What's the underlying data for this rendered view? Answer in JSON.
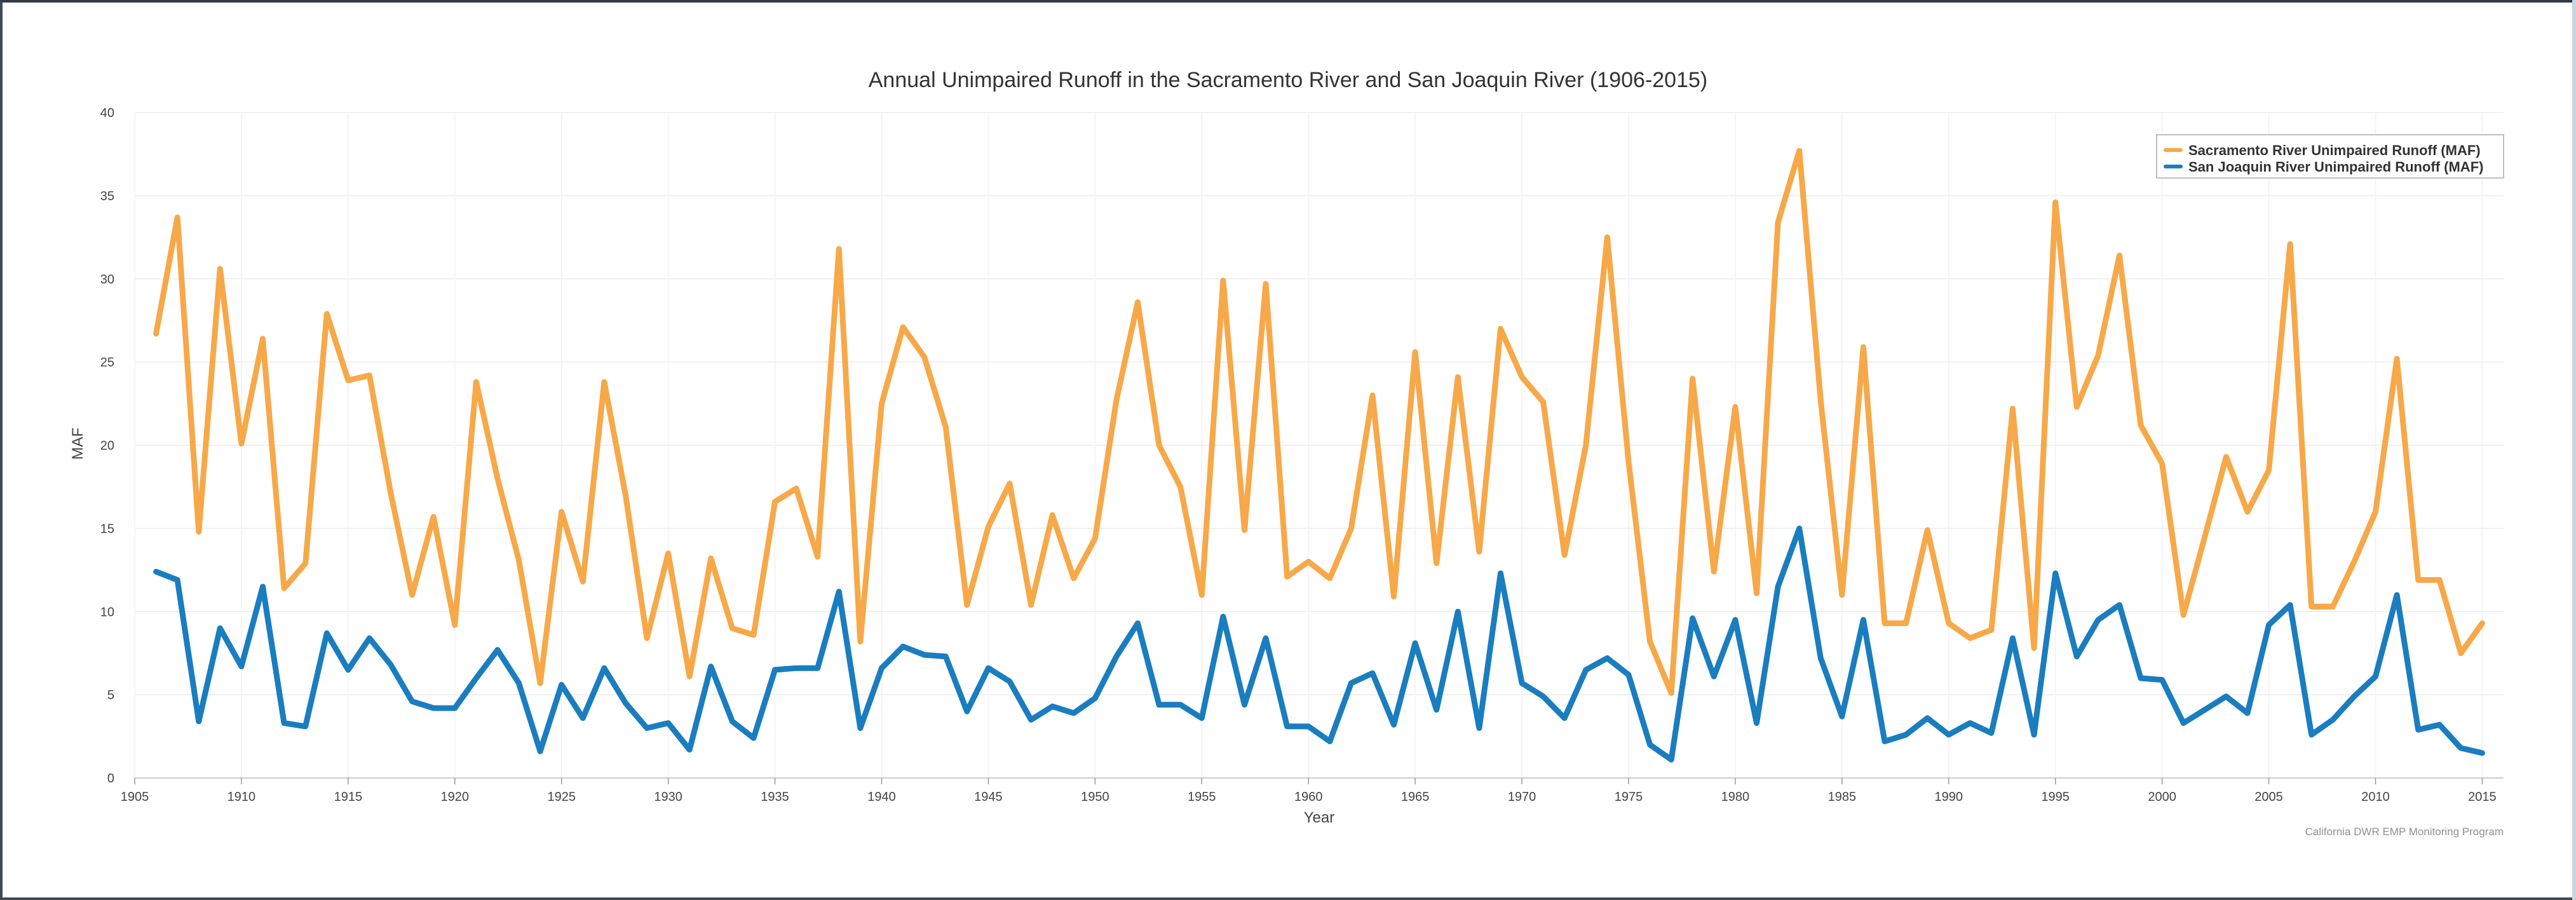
{
  "chart_data": {
    "type": "line",
    "title": "Annual Unimpaired Runoff in the Sacramento River and San Joaquin River (1906-2015)",
    "xlabel": "Year",
    "ylabel": "MAF",
    "xlim": [
      1905,
      2016
    ],
    "ylim": [
      0,
      40
    ],
    "x_ticks": [
      1905,
      1910,
      1915,
      1920,
      1925,
      1930,
      1935,
      1940,
      1945,
      1950,
      1955,
      1960,
      1965,
      1970,
      1975,
      1980,
      1985,
      1990,
      1995,
      2000,
      2005,
      2010,
      2015
    ],
    "y_ticks": [
      0,
      5,
      10,
      15,
      20,
      25,
      30,
      35,
      40
    ],
    "grid": true,
    "legend_position": "top-right",
    "credit": "California DWR EMP Monitoring Program",
    "x": [
      1906,
      1907,
      1908,
      1909,
      1910,
      1911,
      1912,
      1913,
      1914,
      1915,
      1916,
      1917,
      1918,
      1919,
      1920,
      1921,
      1922,
      1923,
      1924,
      1925,
      1926,
      1927,
      1928,
      1929,
      1930,
      1931,
      1932,
      1933,
      1934,
      1935,
      1936,
      1937,
      1938,
      1939,
      1940,
      1941,
      1942,
      1943,
      1944,
      1945,
      1946,
      1947,
      1948,
      1949,
      1950,
      1951,
      1952,
      1953,
      1954,
      1955,
      1956,
      1957,
      1958,
      1959,
      1960,
      1961,
      1962,
      1963,
      1964,
      1965,
      1966,
      1967,
      1968,
      1969,
      1970,
      1971,
      1972,
      1973,
      1974,
      1975,
      1976,
      1977,
      1978,
      1979,
      1980,
      1981,
      1982,
      1983,
      1984,
      1985,
      1986,
      1987,
      1988,
      1989,
      1990,
      1991,
      1992,
      1993,
      1994,
      1995,
      1996,
      1997,
      1998,
      1999,
      2000,
      2001,
      2002,
      2003,
      2004,
      2005,
      2006,
      2007,
      2008,
      2009,
      2010,
      2011,
      2012,
      2013,
      2014,
      2015
    ],
    "series": [
      {
        "name": "Sacramento River Unimpaired Runoff (MAF)",
        "color": "#f7a848",
        "values": [
          26.7,
          33.7,
          14.8,
          30.6,
          20.1,
          26.4,
          11.4,
          12.9,
          27.9,
          23.9,
          24.2,
          17.1,
          11.0,
          15.7,
          9.2,
          23.8,
          18.0,
          13.1,
          5.7,
          16.0,
          11.8,
          23.8,
          17.0,
          8.4,
          13.5,
          6.1,
          13.2,
          9.0,
          8.6,
          16.6,
          17.4,
          13.3,
          31.8,
          8.2,
          22.5,
          27.1,
          25.3,
          21.1,
          10.4,
          15.1,
          17.7,
          10.4,
          15.8,
          12.0,
          14.4,
          22.7,
          28.6,
          20.0,
          17.5,
          11.0,
          29.9,
          14.9,
          29.7,
          12.1,
          13.0,
          12.0,
          15.0,
          23.0,
          10.9,
          25.6,
          12.9,
          24.1,
          13.6,
          27.0,
          24.1,
          22.6,
          13.4,
          20.0,
          32.5,
          19.0,
          8.2,
          5.1,
          24.0,
          12.4,
          22.3,
          11.1,
          33.4,
          37.7,
          22.7,
          11.0,
          25.9,
          9.3,
          9.3,
          14.9,
          9.3,
          8.4,
          8.9,
          22.2,
          7.8,
          34.6,
          22.3,
          25.4,
          31.4,
          21.2,
          18.9,
          9.8,
          14.5,
          19.3,
          16.0,
          18.5,
          32.1,
          10.3,
          10.3,
          13.0,
          16.0,
          25.2,
          11.9,
          11.9,
          7.5,
          9.3
        ]
      },
      {
        "name": "San Joaquin River Unimpaired Runoff (MAF)",
        "color": "#1a7dc0",
        "values": [
          12.4,
          11.9,
          3.4,
          9.0,
          6.7,
          11.5,
          3.3,
          3.1,
          8.7,
          6.5,
          8.4,
          6.8,
          4.6,
          4.2,
          4.2,
          6.0,
          7.7,
          5.7,
          1.6,
          5.6,
          3.6,
          6.6,
          4.5,
          3.0,
          3.3,
          1.7,
          6.7,
          3.4,
          2.4,
          6.5,
          6.6,
          6.6,
          11.2,
          3.0,
          6.6,
          7.9,
          7.4,
          7.3,
          4.0,
          6.6,
          5.8,
          3.5,
          4.3,
          3.9,
          4.8,
          7.3,
          9.3,
          4.4,
          4.4,
          3.6,
          9.7,
          4.4,
          8.4,
          3.1,
          3.1,
          2.2,
          5.7,
          6.3,
          3.2,
          8.1,
          4.1,
          10.0,
          3.0,
          12.3,
          5.7,
          4.9,
          3.6,
          6.5,
          7.2,
          6.2,
          2.0,
          1.1,
          9.6,
          6.1,
          9.5,
          3.3,
          11.5,
          15.0,
          7.2,
          3.7,
          9.5,
          2.2,
          2.6,
          3.6,
          2.6,
          3.3,
          2.7,
          8.4,
          2.6,
          12.3,
          7.3,
          9.5,
          10.4,
          6.0,
          5.9,
          3.3,
          4.1,
          4.9,
          3.9,
          9.2,
          10.4,
          2.6,
          3.5,
          4.9,
          6.1,
          11.0,
          2.9,
          3.2,
          1.8,
          1.5
        ]
      }
    ]
  }
}
